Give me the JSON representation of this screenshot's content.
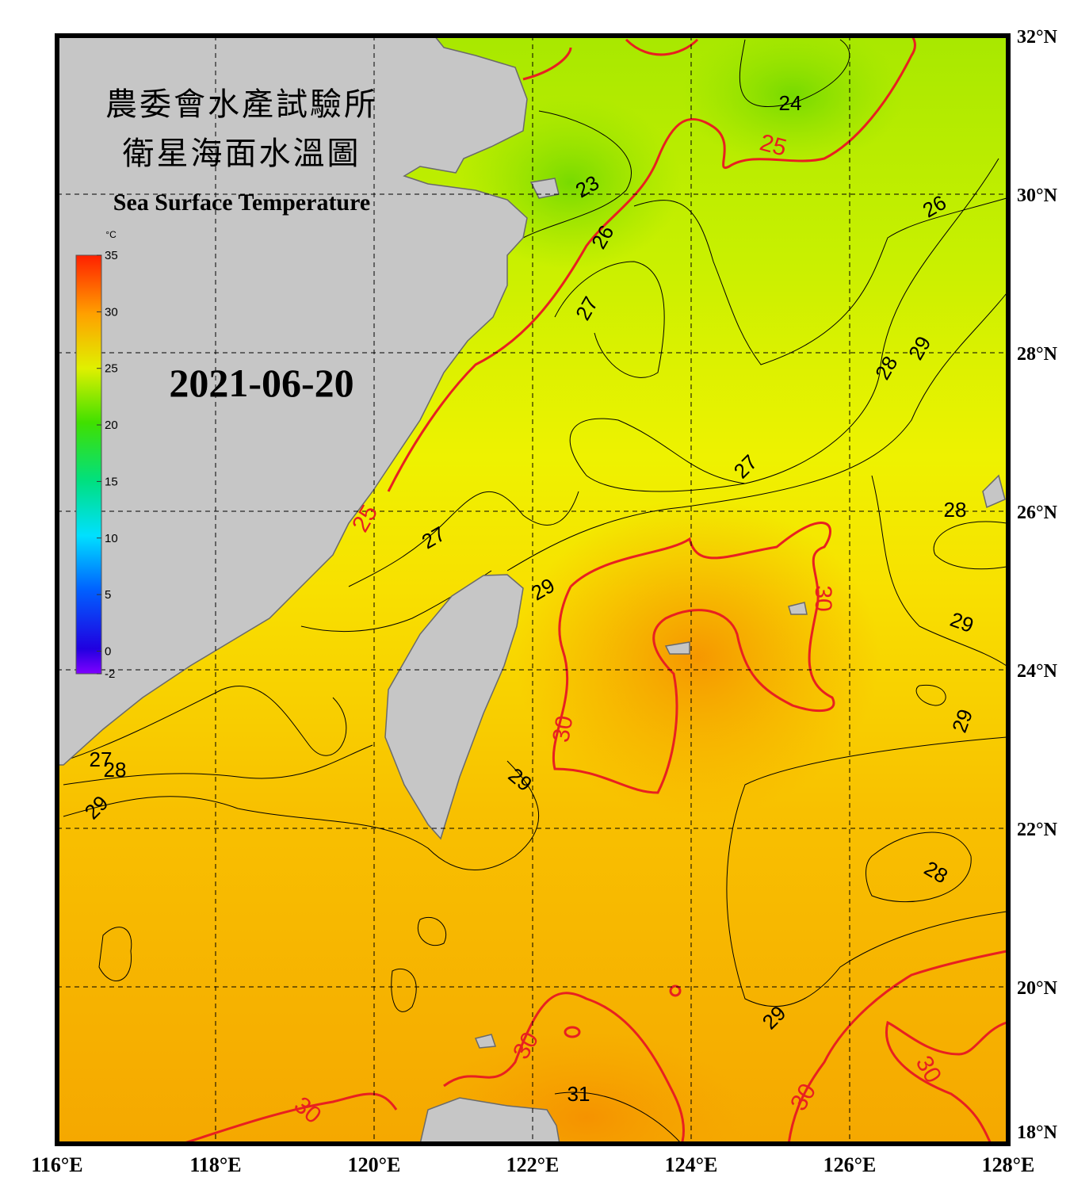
{
  "header": {
    "title_zh": "農委會水產試驗所",
    "subtitle_zh": "衛星海面水溫圖",
    "title_en": "Sea Surface Temperature",
    "date": "2021-06-20"
  },
  "colorbar": {
    "unit": "°C",
    "range": [
      -2,
      35
    ],
    "ticks": [
      35,
      30,
      25,
      20,
      15,
      10,
      5,
      0,
      -2
    ]
  },
  "axes": {
    "longitude_labels": [
      "116°E",
      "118°E",
      "120°E",
      "122°E",
      "124°E",
      "126°E",
      "128°E"
    ],
    "latitude_labels": [
      "32°N",
      "30°N",
      "28°N",
      "26°N",
      "24°N",
      "22°N",
      "20°N",
      "18°N"
    ]
  },
  "contour_labels": [
    24,
    25,
    23,
    26,
    26,
    27,
    29,
    28,
    27,
    28,
    25,
    27,
    29,
    30,
    29,
    29,
    30,
    27,
    28,
    29,
    29,
    28,
    29,
    30,
    30,
    31,
    30,
    30
  ]
}
